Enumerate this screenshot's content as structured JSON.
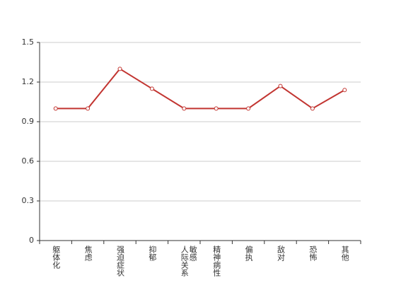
{
  "chart_data": {
    "type": "line",
    "categories": [
      "躯体化",
      "焦虑",
      "强迫症状",
      "抑郁",
      "人际关系敏感",
      "精神病性",
      "偏执",
      "敌对",
      "恐怖",
      "其他"
    ],
    "series": [
      {
        "color": "#c23531",
        "values": [
          1,
          1,
          1.3,
          1.15,
          1,
          1,
          1,
          1.17,
          1,
          1.14
        ]
      }
    ],
    "ylim": [
      0,
      1.5
    ],
    "yticks": [
      0,
      0.3,
      0.6,
      0.9,
      1.2,
      1.5
    ],
    "grid": true
  }
}
